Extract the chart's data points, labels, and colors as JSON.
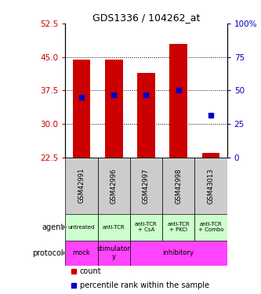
{
  "title": "GDS1336 / 104262_at",
  "samples": [
    "GSM42991",
    "GSM42996",
    "GSM42997",
    "GSM42998",
    "GSM43013"
  ],
  "bar_bottoms": [
    22.5,
    22.5,
    22.5,
    22.5,
    22.5
  ],
  "bar_tops": [
    44.5,
    44.5,
    41.5,
    48.0,
    23.5
  ],
  "percentile_values": [
    36.0,
    36.5,
    36.5,
    37.5,
    32.0
  ],
  "ylim_left": [
    22.5,
    52.5
  ],
  "ylim_right": [
    0,
    100
  ],
  "left_ticks": [
    22.5,
    30,
    37.5,
    45,
    52.5
  ],
  "right_ticks": [
    0,
    25,
    50,
    75,
    100
  ],
  "bar_color": "#cc0000",
  "percentile_color": "#0000cc",
  "agent_labels": [
    "untreated",
    "anti-TCR",
    "anti-TCR\n+ CsA",
    "anti-TCR\n+ PKCi",
    "anti-TCR\n+ Combo"
  ],
  "agent_bg": "#ccffcc",
  "protocol_bg": "#ff44ff",
  "sample_bg": "#cccccc",
  "legend_count_color": "#cc0000",
  "legend_pct_color": "#0000cc",
  "left_tick_color": "#cc0000",
  "right_tick_color": "#0000cc",
  "bar_width": 0.55,
  "gridline_ticks": [
    30,
    37.5,
    45
  ]
}
